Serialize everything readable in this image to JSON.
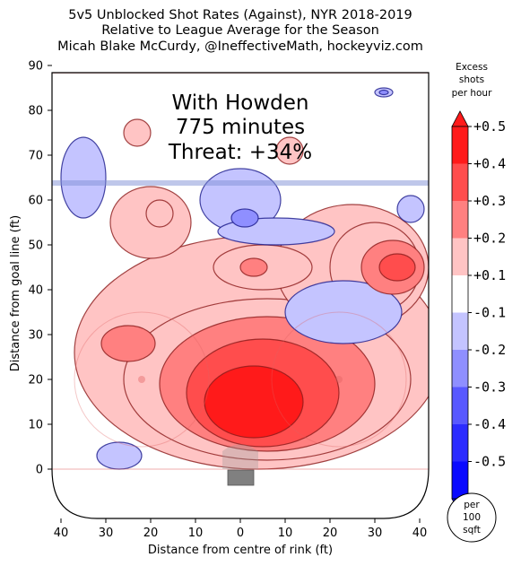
{
  "chart_data": {
    "type": "heatmap",
    "title_lines": [
      "5v5 Unblocked Shot Rates (Against), NYR 2018-2019",
      "Relative to League Average for the Season",
      "Micah Blake McCurdy, @IneffectiveMath, hockeyviz.com"
    ],
    "annotation_lines": [
      "With Howden",
      "775 minutes",
      "Threat: +34%"
    ],
    "xlabel": "Distance from centre of rink (ft)",
    "ylabel": "Distance from goal line (ft)",
    "x_ticks": [
      "40",
      "30",
      "20",
      "10",
      "0",
      "10",
      "20",
      "30",
      "40"
    ],
    "y_ticks": [
      "0",
      "10",
      "20",
      "30",
      "40",
      "50",
      "60",
      "70",
      "80",
      "90"
    ],
    "ylim": [
      -10,
      90
    ],
    "colorbar": {
      "title_lines": [
        "Excess",
        "shots",
        "per hour"
      ],
      "labels": [
        "+0.5",
        "+0.4",
        "+0.3",
        "+0.2",
        "+0.1",
        "-0.1",
        "-0.2",
        "-0.3",
        "-0.4",
        "-0.5"
      ],
      "colors": [
        "#ff1a1a",
        "#ff4d4d",
        "#ff8080",
        "#ffc4c4",
        "#ffffff",
        "#c4c4ff",
        "#8f8fff",
        "#5858ff",
        "#2b2bff",
        "#0a0aff"
      ]
    },
    "scale_badge_lines": [
      "per",
      "100",
      "sqft"
    ],
    "regions": [
      {
        "level": 0.5,
        "x": 3,
        "y": 15,
        "rx": 11,
        "ry": 8
      },
      {
        "level": 0.4,
        "x": 5,
        "y": 17,
        "rx": 17,
        "ry": 12
      },
      {
        "level": 0.3,
        "x": 6,
        "y": 19,
        "rx": 24,
        "ry": 15
      },
      {
        "level": 0.2,
        "x": 6,
        "y": 20,
        "rx": 32,
        "ry": 18
      },
      {
        "level": 0.1,
        "x": 4,
        "y": 26,
        "rx": 41,
        "ry": 26
      },
      {
        "level": 0.3,
        "x": -25,
        "y": 28,
        "rx": 6,
        "ry": 4
      },
      {
        "level": 0.3,
        "x": 34,
        "y": 45,
        "rx": 7,
        "ry": 6
      },
      {
        "level": 0.4,
        "x": 35,
        "y": 45,
        "rx": 4,
        "ry": 3
      },
      {
        "level": 0.2,
        "x": 30,
        "y": 45,
        "rx": 10,
        "ry": 10
      },
      {
        "level": 0.1,
        "x": 25,
        "y": 45,
        "rx": 17,
        "ry": 14
      },
      {
        "level": 0.2,
        "x": 5,
        "y": 45,
        "rx": 11,
        "ry": 5
      },
      {
        "level": 0.3,
        "x": 3,
        "y": 45,
        "rx": 3,
        "ry": 2
      },
      {
        "level": 0.1,
        "x": -20,
        "y": 55,
        "rx": 9,
        "ry": 8
      },
      {
        "level": 0.2,
        "x": -18,
        "y": 57,
        "rx": 3,
        "ry": 3
      },
      {
        "level": 0.1,
        "x": -23,
        "y": 75,
        "rx": 3,
        "ry": 3
      },
      {
        "level": 0.1,
        "x": 11,
        "y": 71,
        "rx": 3,
        "ry": 3
      },
      {
        "level": -0.1,
        "x": -35,
        "y": 65,
        "rx": 5,
        "ry": 9
      },
      {
        "level": -0.1,
        "x": 0,
        "y": 60,
        "rx": 9,
        "ry": 7
      },
      {
        "level": -0.1,
        "x": 8,
        "y": 53,
        "rx": 13,
        "ry": 3
      },
      {
        "level": -0.2,
        "x": 1,
        "y": 56,
        "rx": 3,
        "ry": 2
      },
      {
        "level": -0.1,
        "x": 38,
        "y": 58,
        "rx": 3,
        "ry": 3
      },
      {
        "level": -0.1,
        "x": 23,
        "y": 35,
        "rx": 13,
        "ry": 7
      },
      {
        "level": -0.1,
        "x": -27,
        "y": 3,
        "rx": 5,
        "ry": 3
      },
      {
        "level": -0.1,
        "x": 32,
        "y": 84,
        "rx": 2,
        "ry": 1
      },
      {
        "level": -0.2,
        "x": 32,
        "y": 84,
        "rx": 1,
        "ry": 0.5
      }
    ]
  }
}
